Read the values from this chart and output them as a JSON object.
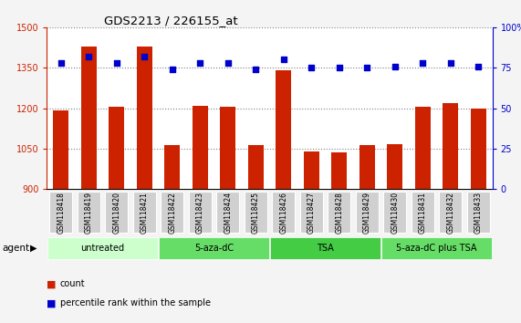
{
  "title": "GDS2213 / 226155_at",
  "samples": [
    "GSM118418",
    "GSM118419",
    "GSM118420",
    "GSM118421",
    "GSM118422",
    "GSM118423",
    "GSM118424",
    "GSM118425",
    "GSM118426",
    "GSM118427",
    "GSM118428",
    "GSM118429",
    "GSM118430",
    "GSM118431",
    "GSM118432",
    "GSM118433"
  ],
  "counts": [
    1192,
    1430,
    1205,
    1430,
    1063,
    1210,
    1205,
    1063,
    1340,
    1038,
    1035,
    1063,
    1068,
    1205,
    1220,
    1200
  ],
  "percentiles": [
    78,
    82,
    78,
    82,
    74,
    78,
    78,
    74,
    80,
    75,
    75,
    75,
    76,
    78,
    78,
    76
  ],
  "groups": [
    {
      "label": "untreated",
      "start": 0,
      "end": 4,
      "color": "#ccffcc"
    },
    {
      "label": "5-aza-dC",
      "start": 4,
      "end": 8,
      "color": "#66dd66"
    },
    {
      "label": "TSA",
      "start": 8,
      "end": 12,
      "color": "#44cc44"
    },
    {
      "label": "5-aza-dC plus TSA",
      "start": 12,
      "end": 16,
      "color": "#66dd66"
    }
  ],
  "ylim_left": [
    900,
    1500
  ],
  "ylim_right": [
    0,
    100
  ],
  "yticks_left": [
    900,
    1050,
    1200,
    1350,
    1500
  ],
  "yticks_right": [
    0,
    25,
    50,
    75,
    100
  ],
  "bar_color": "#cc2200",
  "dot_color": "#0000cc",
  "plot_bg": "#ffffff",
  "grid_color": "#808080",
  "left_tick_color": "#cc2200",
  "right_tick_color": "#0000cc",
  "label_bg_color": "#d0d0d0",
  "legend_count_label": "count",
  "legend_pct_label": "percentile rank within the sample",
  "agent_label": "agent"
}
